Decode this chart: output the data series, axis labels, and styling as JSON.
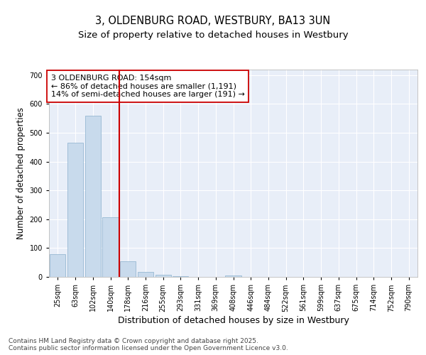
{
  "title1": "3, OLDENBURG ROAD, WESTBURY, BA13 3UN",
  "title2": "Size of property relative to detached houses in Westbury",
  "xlabel": "Distribution of detached houses by size in Westbury",
  "ylabel": "Number of detached properties",
  "categories": [
    "25sqm",
    "63sqm",
    "102sqm",
    "140sqm",
    "178sqm",
    "216sqm",
    "255sqm",
    "293sqm",
    "331sqm",
    "369sqm",
    "408sqm",
    "446sqm",
    "484sqm",
    "522sqm",
    "561sqm",
    "599sqm",
    "637sqm",
    "675sqm",
    "714sqm",
    "752sqm",
    "790sqm"
  ],
  "values": [
    78,
    465,
    560,
    208,
    55,
    18,
    8,
    2,
    0,
    0,
    5,
    0,
    0,
    0,
    0,
    0,
    0,
    0,
    0,
    0,
    0
  ],
  "bar_color": "#c8daec",
  "bar_edge_color": "#8ab0cc",
  "redline_index": 3,
  "redline_color": "#cc0000",
  "annotation_text": "3 OLDENBURG ROAD: 154sqm\n← 86% of detached houses are smaller (1,191)\n14% of semi-detached houses are larger (191) →",
  "annotation_box_facecolor": "#ffffff",
  "annotation_box_edgecolor": "#cc0000",
  "ylim": [
    0,
    720
  ],
  "yticks": [
    0,
    100,
    200,
    300,
    400,
    500,
    600,
    700
  ],
  "fig_bg_color": "#ffffff",
  "plot_bg_color": "#e8eef8",
  "grid_color": "#ffffff",
  "footnote": "Contains HM Land Registry data © Crown copyright and database right 2025.\nContains public sector information licensed under the Open Government Licence v3.0.",
  "title1_fontsize": 10.5,
  "title2_fontsize": 9.5,
  "xlabel_fontsize": 9,
  "ylabel_fontsize": 8.5,
  "tick_fontsize": 7,
  "annotation_fontsize": 8,
  "footnote_fontsize": 6.5
}
